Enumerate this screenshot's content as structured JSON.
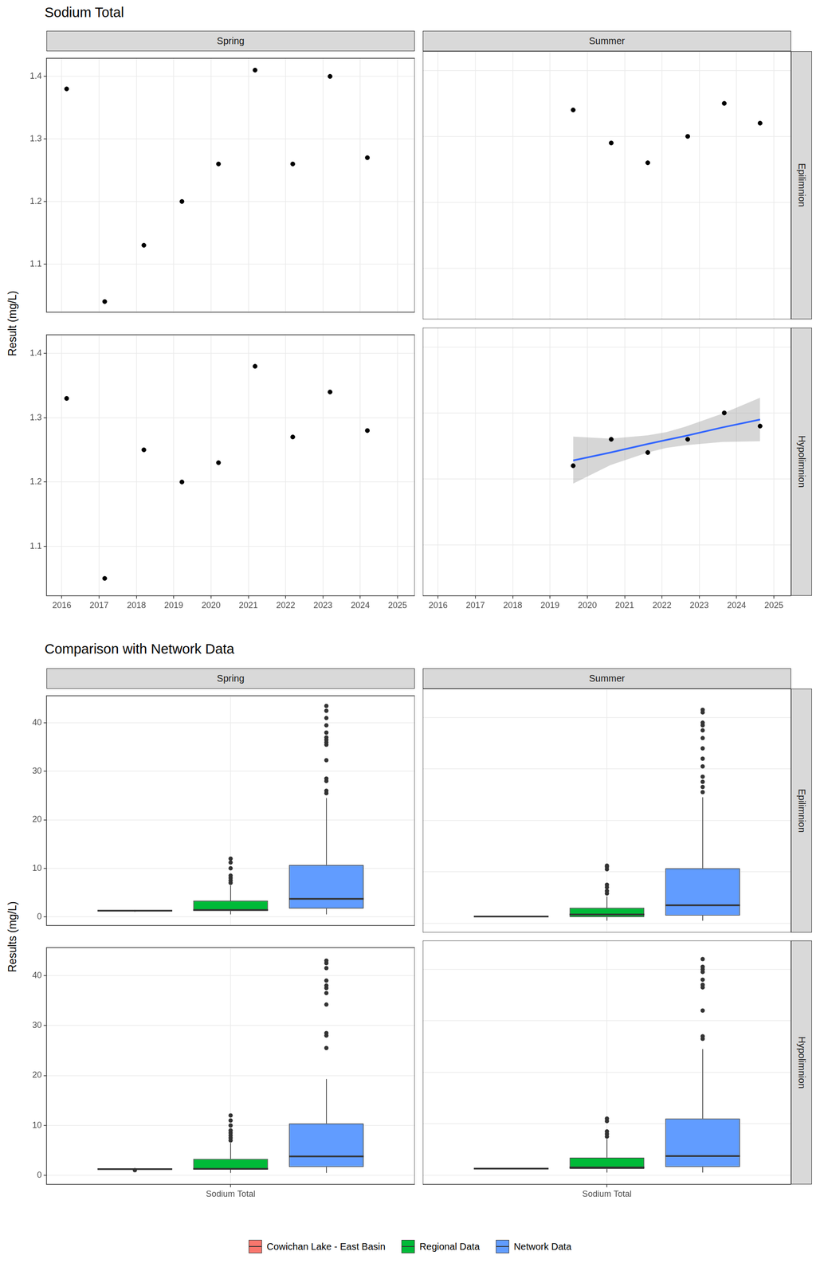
{
  "chart_data": [
    {
      "type": "scatter",
      "title": "Sodium Total",
      "ylabel": "Result (mg/L)",
      "columns": [
        "Spring",
        "Summer"
      ],
      "rows": [
        "Epilimnion",
        "Hypolimnion"
      ],
      "xlim": [
        2015.59,
        2025.46
      ],
      "xticks": [
        2016,
        2017,
        2018,
        2019,
        2020,
        2021,
        2022,
        2023,
        2024,
        2025
      ],
      "ylim": [
        1.023,
        1.429
      ],
      "yticks": [
        1.1,
        1.2,
        1.3,
        1.4
      ],
      "grid": true,
      "panels": [
        {
          "series": [
            {
              "type": "scatter",
              "color": "#000000",
              "marker": "circle",
              "x": [
                2016.13,
                2017.15,
                2018.2,
                2019.22,
                2020.2,
                2021.18,
                2022.19,
                2023.19,
                2024.19
              ],
              "values": [
                1.38,
                1.04,
                1.13,
                1.2,
                1.26,
                1.41,
                1.26,
                1.4,
                1.27
              ]
            }
          ]
        },
        {
          "series": [
            {
              "type": "scatter",
              "color": "#000000",
              "marker": "circle",
              "x": [
                2019.62,
                2020.64,
                2021.62,
                2022.69,
                2023.67,
                2024.63
              ],
              "values": [
                1.34,
                1.29,
                1.26,
                1.3,
                1.35,
                1.32
              ]
            }
          ]
        },
        {
          "series": [
            {
              "type": "scatter",
              "color": "#000000",
              "marker": "circle",
              "x": [
                2016.13,
                2017.15,
                2018.2,
                2019.22,
                2020.2,
                2021.18,
                2022.19,
                2023.19,
                2024.19
              ],
              "values": [
                1.33,
                1.05,
                1.25,
                1.2,
                1.23,
                1.38,
                1.27,
                1.34,
                1.28
              ]
            }
          ]
        },
        {
          "series": [
            {
              "type": "scatter",
              "color": "#000000",
              "marker": "circle",
              "x": [
                2019.62,
                2020.64,
                2021.62,
                2022.69,
                2023.67,
                2024.63
              ],
              "values": [
                1.22,
                1.26,
                1.24,
                1.26,
                1.3,
                1.28
              ]
            },
            {
              "type": "line",
              "color": "#3366FF",
              "line_style": "solid",
              "x": [
                2019.62,
                2020.62,
                2021.62,
                2022.12,
                2022.62,
                2023.62,
                2024.63
              ],
              "values": [
                1.228,
                1.24,
                1.253,
                1.259,
                1.265,
                1.278,
                1.29
              ],
              "lower": [
                1.193,
                1.221,
                1.24,
                1.247,
                1.251,
                1.256,
                1.257
              ],
              "upper": [
                1.264,
                1.261,
                1.266,
                1.271,
                1.279,
                1.299,
                1.323
              ]
            }
          ]
        }
      ]
    },
    {
      "type": "boxplot",
      "title": "Comparison with Network Data",
      "ylabel": "Results (mg/L)",
      "columns": [
        "Spring",
        "Summer"
      ],
      "rows": [
        "Epilimnion",
        "Hypolimnion"
      ],
      "categories": [
        "Sodium Total"
      ],
      "ylim": [
        -1.8,
        45.6
      ],
      "yticks": [
        0,
        10,
        20,
        30,
        40
      ],
      "grid": true,
      "legend": "bottom",
      "panels": [
        {
          "series": [
            {
              "name": "Cowichan Lake - East Basin",
              "color": "#F8766D",
              "values": [
                {
                  "min": 1.04,
                  "q1": 1.2,
                  "median": 1.26,
                  "q3": 1.38,
                  "max": 1.41,
                  "outliers": []
                }
              ]
            },
            {
              "name": "Regional Data",
              "color": "#00BA38",
              "values": [
                {
                  "min": 0.5,
                  "q1": 1.2,
                  "median": 1.4,
                  "q3": 3.3,
                  "max": 6.5,
                  "outliers": [
                    7,
                    7.5,
                    8,
                    8.5,
                    10,
                    11.2,
                    12
                  ]
                }
              ]
            },
            {
              "name": "Network Data",
              "color": "#619CFF",
              "values": [
                {
                  "min": 0.5,
                  "q1": 1.7,
                  "median": 3.7,
                  "q3": 10.7,
                  "max": 24.5,
                  "outliers": [
                    25.5,
                    26,
                    28,
                    28.5,
                    32.3,
                    35.5,
                    36,
                    36.5,
                    37,
                    38,
                    39.5,
                    41,
                    42.5,
                    43.5
                  ]
                }
              ]
            }
          ]
        },
        {
          "series": [
            {
              "name": "Cowichan Lake - East Basin",
              "color": "#F8766D",
              "values": [
                {
                  "min": 1.26,
                  "q1": 1.29,
                  "median": 1.31,
                  "q3": 1.335,
                  "max": 1.35,
                  "outliers": []
                }
              ]
            },
            {
              "name": "Regional Data",
              "color": "#00BA38",
              "values": [
                {
                  "min": 0.5,
                  "q1": 1.2,
                  "median": 1.7,
                  "q3": 3,
                  "max": 5.2,
                  "outliers": [
                    5.8,
                    6.3,
                    7,
                    7.5,
                    10.5,
                    11,
                    11.2
                  ]
                }
              ]
            },
            {
              "name": "Network Data",
              "color": "#619CFF",
              "values": [
                {
                  "min": 0.5,
                  "q1": 1.5,
                  "median": 3.5,
                  "q3": 10.7,
                  "max": 24.5,
                  "outliers": [
                    25.5,
                    26.5,
                    27.5,
                    28.5,
                    30.5,
                    32,
                    34,
                    36,
                    37.5,
                    38.5,
                    39,
                    41,
                    41.5
                  ]
                }
              ]
            }
          ]
        },
        {
          "series": [
            {
              "name": "Cowichan Lake - East Basin",
              "color": "#F8766D",
              "values": [
                {
                  "min": 1.2,
                  "q1": 1.23,
                  "median": 1.27,
                  "q3": 1.33,
                  "max": 1.38,
                  "outliers": [
                    1.05
                  ]
                }
              ]
            },
            {
              "name": "Regional Data",
              "color": "#00BA38",
              "values": [
                {
                  "min": 0.5,
                  "q1": 1.2,
                  "median": 1.3,
                  "q3": 3.3,
                  "max": 6.5,
                  "outliers": [
                    7,
                    7.5,
                    8,
                    8.5,
                    9,
                    10,
                    11,
                    12
                  ]
                }
              ]
            },
            {
              "name": "Network Data",
              "color": "#619CFF",
              "values": [
                {
                  "min": 0.5,
                  "q1": 1.7,
                  "median": 3.8,
                  "q3": 10.4,
                  "max": 19.3,
                  "outliers": [
                    25.5,
                    28,
                    28.5,
                    34.2,
                    36.5,
                    37.5,
                    38,
                    39,
                    41.5,
                    42.5,
                    43
                  ]
                }
              ]
            }
          ]
        },
        {
          "series": [
            {
              "name": "Cowichan Lake - East Basin",
              "color": "#F8766D",
              "values": [
                {
                  "min": 1.22,
                  "q1": 1.245,
                  "median": 1.26,
                  "q3": 1.275,
                  "max": 1.3,
                  "outliers": []
                }
              ]
            },
            {
              "name": "Regional Data",
              "color": "#00BA38",
              "values": [
                {
                  "min": 0.5,
                  "q1": 1.2,
                  "median": 1.5,
                  "q3": 3.4,
                  "max": 7,
                  "outliers": [
                    7.5,
                    8,
                    8.5,
                    10.5,
                    11
                  ]
                }
              ]
            },
            {
              "name": "Network Data",
              "color": "#619CFF",
              "values": [
                {
                  "min": 0.5,
                  "q1": 1.6,
                  "median": 3.7,
                  "q3": 11,
                  "max": 24.5,
                  "outliers": [
                    26.5,
                    27,
                    32,
                    36.5,
                    37,
                    38,
                    39.5,
                    40,
                    40.5,
                    42
                  ]
                }
              ]
            }
          ]
        }
      ]
    }
  ]
}
